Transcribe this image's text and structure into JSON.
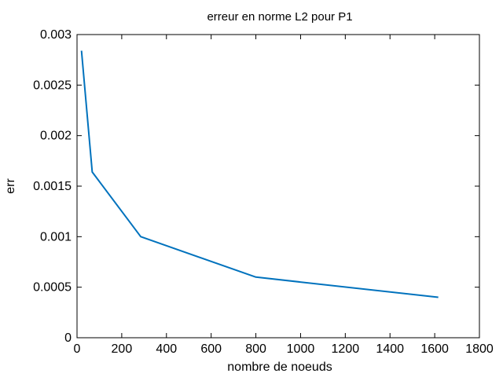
{
  "chart_data": {
    "type": "line",
    "title": "erreur en norme L2 pour P1",
    "xlabel": "nombre de noeuds",
    "ylabel": "err",
    "xlim": [
      0,
      1800
    ],
    "ylim": [
      0,
      0.003
    ],
    "x_ticks": [
      0,
      200,
      400,
      600,
      800,
      1000,
      1200,
      1400,
      1600,
      1800
    ],
    "x_tick_labels": [
      "0",
      "200",
      "400",
      "600",
      "800",
      "1000",
      "1200",
      "1400",
      "1600",
      "1800"
    ],
    "y_ticks": [
      0,
      0.0005,
      0.001,
      0.0015,
      0.002,
      0.0025,
      0.003
    ],
    "y_tick_labels": [
      "0",
      "0.0005",
      "0.001",
      "0.0015",
      "0.002",
      "0.0025",
      "0.003"
    ],
    "grid": false,
    "legend": "none",
    "series": [
      {
        "color": "#0072bd",
        "x": [
          20,
          68,
          285,
          800,
          1616
        ],
        "y": [
          0.00284,
          0.00164,
          0.001,
          0.0006,
          0.0004
        ]
      }
    ]
  }
}
